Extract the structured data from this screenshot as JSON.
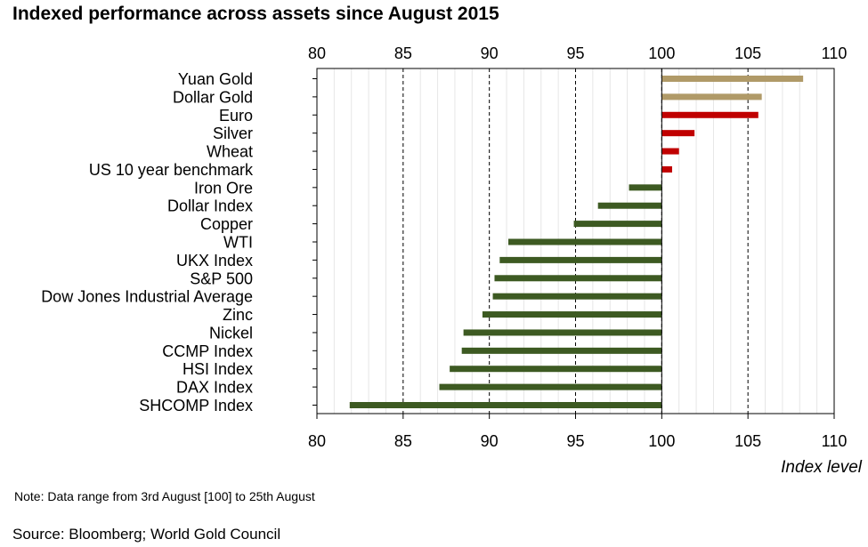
{
  "chart_data": {
    "type": "bar",
    "orientation": "horizontal",
    "title": "Indexed performance across assets since August 2015",
    "xlabel": "Index level",
    "ylabel": "",
    "xlim": [
      80,
      110
    ],
    "x_ticks": [
      80,
      85,
      90,
      95,
      100,
      105,
      110
    ],
    "baseline": 100,
    "grid": "vertical gridlines",
    "legend": "none",
    "categories": [
      "Yuan Gold",
      "Dollar Gold",
      "Euro",
      "Silver",
      "Wheat",
      "US 10 year benchmark",
      "Iron Ore",
      "Dollar Index",
      "Copper",
      "WTI",
      "UKX Index",
      "S&P 500",
      "Dow Jones Industrial Average",
      "Zinc",
      "Nickel",
      "CCMP Index",
      "HSI Index",
      "DAX Index",
      "SHCOMP Index"
    ],
    "values": [
      108.2,
      105.8,
      105.6,
      101.9,
      101.0,
      100.6,
      98.1,
      96.3,
      94.9,
      91.1,
      90.6,
      90.3,
      90.2,
      89.6,
      88.5,
      88.4,
      87.7,
      87.1,
      81.9
    ],
    "colors": [
      "#b09a68",
      "#b09a68",
      "#c00000",
      "#c00000",
      "#c00000",
      "#c00000",
      "#3d5a22",
      "#3d5a22",
      "#3d5a22",
      "#3d5a22",
      "#3d5a22",
      "#3d5a22",
      "#3d5a22",
      "#3d5a22",
      "#3d5a22",
      "#3d5a22",
      "#3d5a22",
      "#3d5a22",
      "#3d5a22"
    ]
  },
  "note": "Note: Data range from 3rd August [100] to 25th August",
  "source": "Source: Bloomberg; World Gold Council"
}
